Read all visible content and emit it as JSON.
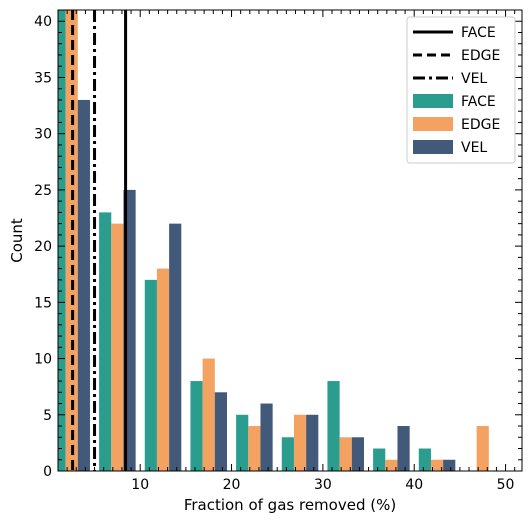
{
  "chart_data": {
    "type": "bar",
    "xlabel": "Fraction of gas removed (%)",
    "ylabel": "Count",
    "xlim": [
      1.0,
      51.8
    ],
    "ylim": [
      0,
      41
    ],
    "xticks": [
      10,
      20,
      30,
      40,
      50
    ],
    "yticks": [
      0,
      5,
      10,
      15,
      20,
      25,
      30,
      35,
      40
    ],
    "bin_edges": [
      0,
      5,
      10,
      15,
      20,
      25,
      30,
      35,
      40,
      45,
      50
    ],
    "series": [
      {
        "name": "FACE",
        "color": "#2a9d8f",
        "values": [
          41,
          23,
          17,
          8,
          5,
          3,
          8,
          2,
          2,
          0
        ]
      },
      {
        "name": "EDGE",
        "color": "#f4a261",
        "values": [
          41,
          22,
          18,
          10,
          4,
          5,
          3,
          1,
          1,
          4
        ]
      },
      {
        "name": "VEL",
        "color": "#43597a",
        "values": [
          33,
          25,
          22,
          7,
          6,
          5,
          3,
          4,
          1,
          0
        ]
      }
    ],
    "vlines": [
      {
        "name": "FACE",
        "x": 8.4,
        "style": "solid"
      },
      {
        "name": "EDGE",
        "x": 2.6,
        "style": "dashed"
      },
      {
        "name": "VEL",
        "x": 5.0,
        "style": "dashdot"
      }
    ],
    "legend": {
      "position": "top-right",
      "entries": [
        "FACE",
        "EDGE",
        "VEL",
        "FACE",
        "EDGE",
        "VEL"
      ]
    },
    "grid": false
  }
}
